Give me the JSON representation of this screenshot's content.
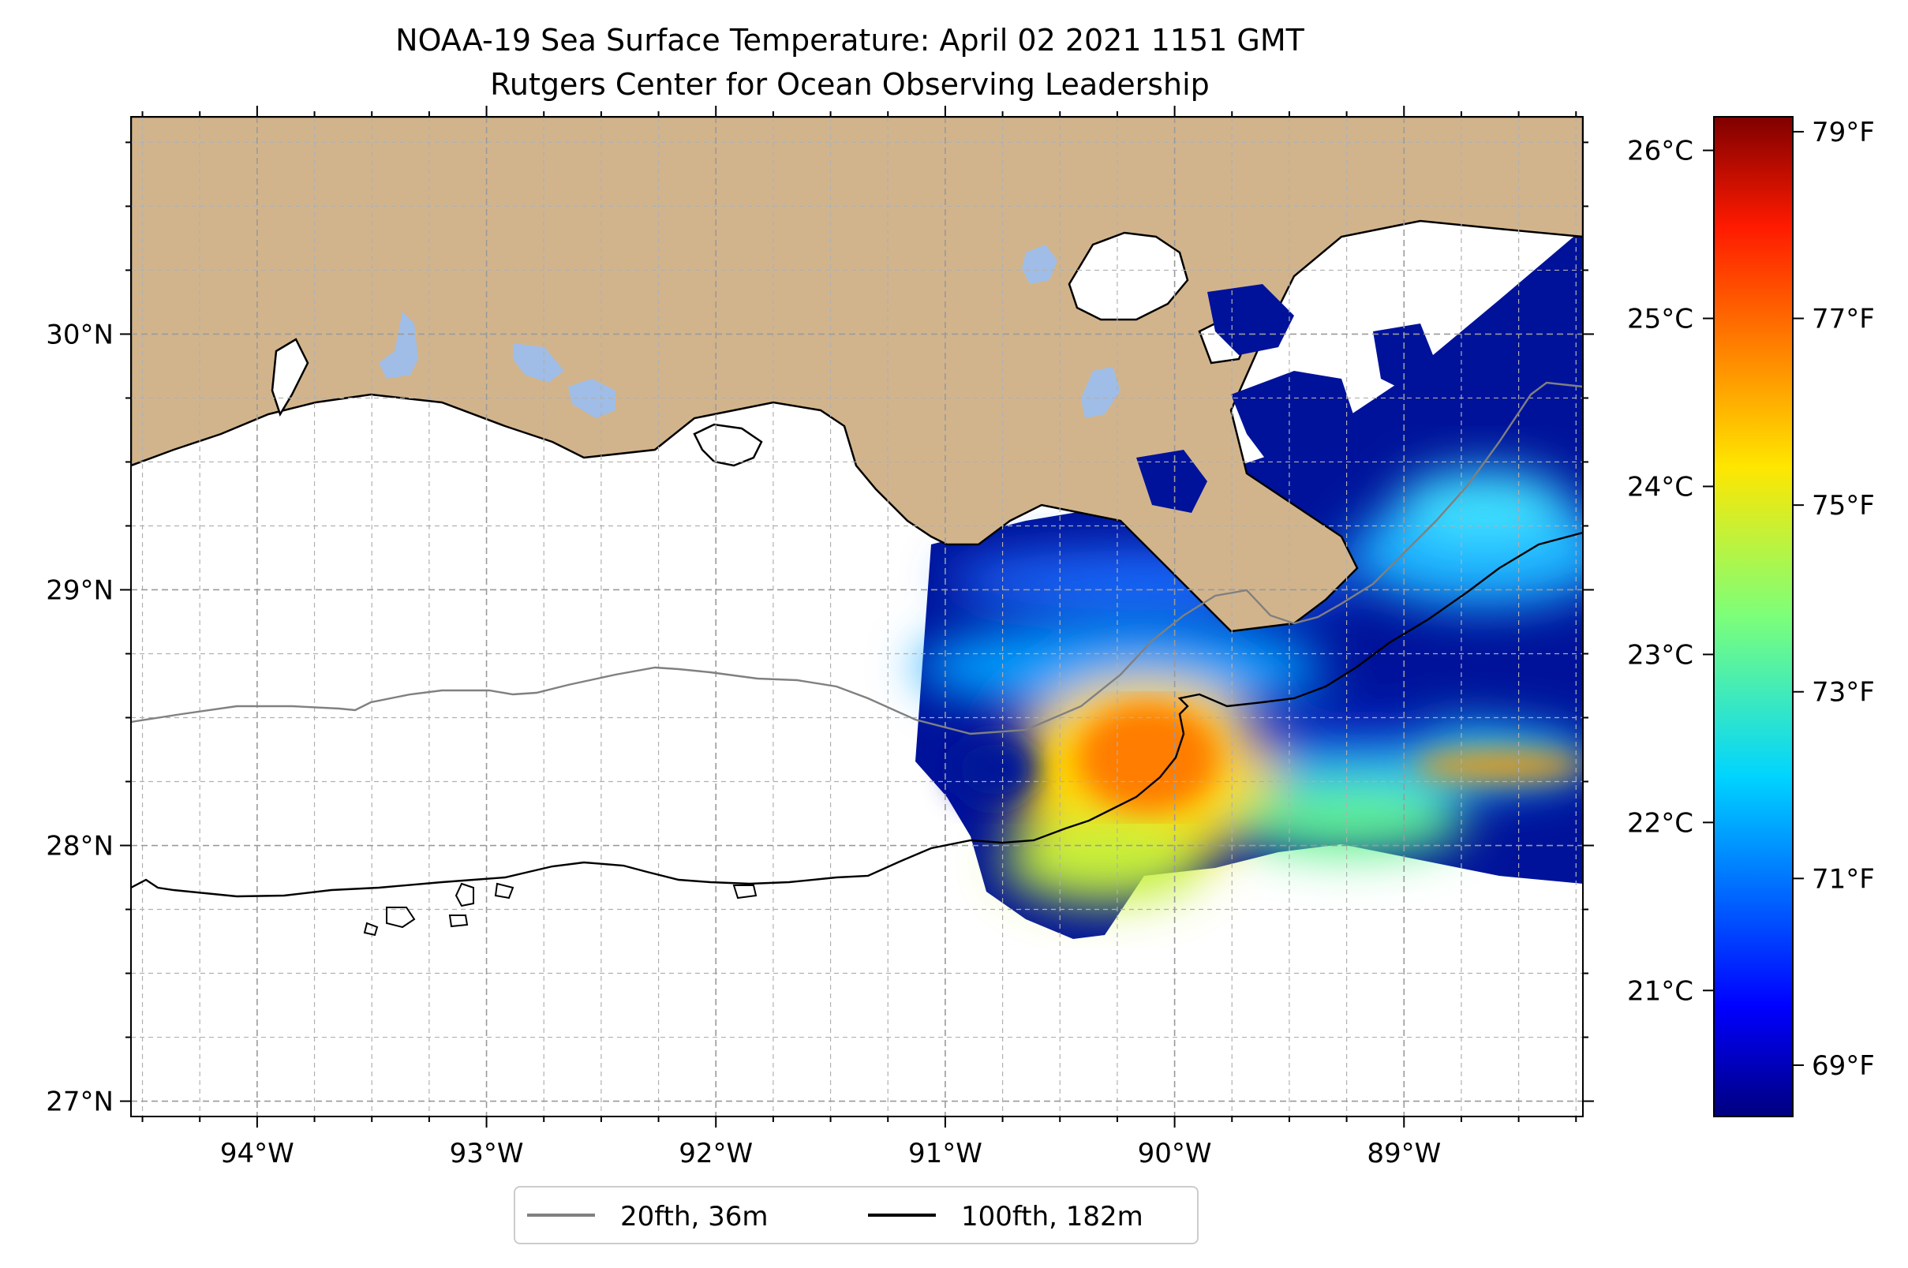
{
  "title": {
    "line1": "NOAA-19 Sea Surface Temperature: April 02 2021 1151 GMT",
    "line2": "Rutgers Center for Ocean Observing Leadership"
  },
  "map": {
    "lon_range": [
      -94.55,
      -88.22
    ],
    "lat_range": [
      26.94,
      30.85
    ],
    "lon_ticks": [
      {
        "value": -94,
        "label": "94°W"
      },
      {
        "value": -93,
        "label": "93°W"
      },
      {
        "value": -92,
        "label": "92°W"
      },
      {
        "value": -91,
        "label": "91°W"
      },
      {
        "value": -90,
        "label": "90°W"
      },
      {
        "value": -89,
        "label": "89°W"
      }
    ],
    "lat_ticks": [
      {
        "value": 27,
        "label": "27°N"
      },
      {
        "value": 28,
        "label": "28°N"
      },
      {
        "value": 29,
        "label": "29°N"
      },
      {
        "value": 30,
        "label": "30°N"
      }
    ],
    "minor_grid_step_deg": 0.25,
    "gridlines": true,
    "land_color": "#d2b48c",
    "lake_color": "#9fbde6",
    "ocean_color": "#ffffff",
    "sst_swath_west_edge_lon": -91.1
  },
  "colorbar": {
    "colormap": "jet",
    "celsius_range": [
      20.25,
      26.2
    ],
    "celsius_ticks": [
      {
        "value": 21,
        "label": "21°C"
      },
      {
        "value": 22,
        "label": "22°C"
      },
      {
        "value": 23,
        "label": "23°C"
      },
      {
        "value": 24,
        "label": "24°C"
      },
      {
        "value": 25,
        "label": "25°C"
      },
      {
        "value": 26,
        "label": "26°C"
      }
    ],
    "fahrenheit_ticks": [
      {
        "value": 69,
        "label": "69°F"
      },
      {
        "value": 71,
        "label": "71°F"
      },
      {
        "value": 73,
        "label": "73°F"
      },
      {
        "value": 75,
        "label": "75°F"
      },
      {
        "value": 77,
        "label": "77°F"
      },
      {
        "value": 79,
        "label": "79°F"
      }
    ]
  },
  "legend": {
    "placement": "bottom-center",
    "items": [
      {
        "label": "20fth, 36m",
        "color": "#808080"
      },
      {
        "label": "100fth, 182m",
        "color": "#000000"
      }
    ]
  }
}
